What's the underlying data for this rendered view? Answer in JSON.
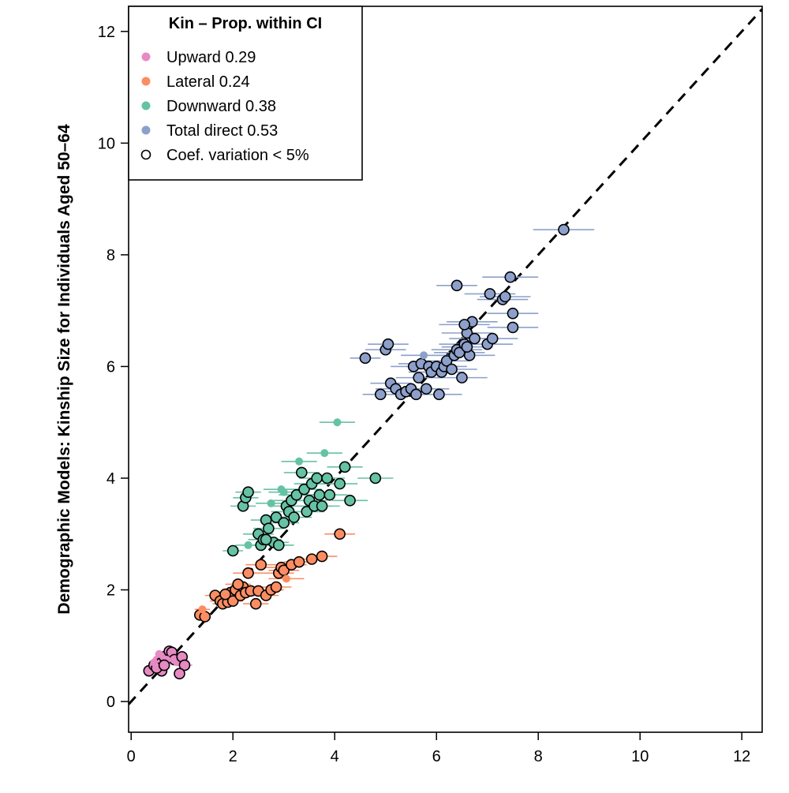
{
  "chart_data": {
    "type": "scatter",
    "title": "",
    "xlabel": "",
    "ylabel": "Demographic Models: Kinship Size for Individuals Aged 50–64",
    "xlim": [
      -0.05,
      12.4
    ],
    "ylim": [
      -0.55,
      12.45
    ],
    "x_ticks": [
      0,
      2,
      4,
      6,
      8,
      10,
      12
    ],
    "y_ticks": [
      0,
      2,
      4,
      6,
      8,
      10,
      12
    ],
    "x_tick_labels": [
      "0",
      "2",
      "4",
      "6",
      "8",
      "10",
      "12"
    ],
    "y_tick_labels": [
      "0",
      "2",
      "4",
      "6",
      "8",
      "10",
      "12"
    ],
    "reference_line": "y = x (dashed)",
    "legend": {
      "title": "Kin – Prop. within CI",
      "position": "top-left",
      "entries": [
        {
          "label": "Upward 0.29",
          "color": "#E78AC3",
          "marker": "filled"
        },
        {
          "label": "Lateral 0.24",
          "color": "#FC8D62",
          "marker": "filled"
        },
        {
          "label": "Downward 0.38",
          "color": "#66C2A5",
          "marker": "filled"
        },
        {
          "label": "Total direct 0.53",
          "color": "#8DA0CB",
          "marker": "filled"
        },
        {
          "label": "Coef. variation < 5%",
          "color": "#000000",
          "marker": "open"
        }
      ]
    },
    "series": [
      {
        "name": "Upward 0.29",
        "color": "#E78AC3",
        "points": [
          {
            "x": 0.35,
            "y": 0.55,
            "xerr": 0.08,
            "o": 1
          },
          {
            "x": 0.45,
            "y": 0.65,
            "xerr": 0.08,
            "o": 1
          },
          {
            "x": 0.5,
            "y": 0.75,
            "xerr": 0.08,
            "o": 0
          },
          {
            "x": 0.55,
            "y": 0.6,
            "xerr": 0.08,
            "o": 1
          },
          {
            "x": 0.6,
            "y": 0.7,
            "xerr": 0.1,
            "o": 1
          },
          {
            "x": 0.65,
            "y": 0.8,
            "xerr": 0.08,
            "o": 1
          },
          {
            "x": 0.7,
            "y": 0.85,
            "xerr": 0.1,
            "o": 0
          },
          {
            "x": 0.75,
            "y": 0.9,
            "xerr": 0.1,
            "o": 1
          },
          {
            "x": 0.8,
            "y": 0.88,
            "xerr": 0.1,
            "o": 1
          },
          {
            "x": 0.85,
            "y": 0.75,
            "xerr": 0.1,
            "o": 1
          },
          {
            "x": 0.9,
            "y": 0.7,
            "xerr": 0.1,
            "o": 0
          },
          {
            "x": 1.0,
            "y": 0.8,
            "xerr": 0.1,
            "o": 1
          },
          {
            "x": 1.05,
            "y": 0.65,
            "xerr": 0.15,
            "o": 1
          },
          {
            "x": 0.95,
            "y": 0.5,
            "xerr": 0.1,
            "o": 1
          },
          {
            "x": 0.6,
            "y": 0.55,
            "xerr": 0.08,
            "o": 1
          },
          {
            "x": 0.7,
            "y": 0.75,
            "xerr": 0.1,
            "o": 0
          },
          {
            "x": 0.5,
            "y": 0.6,
            "xerr": 0.08,
            "o": 1
          },
          {
            "x": 0.55,
            "y": 0.85,
            "xerr": 0.08,
            "o": 0
          },
          {
            "x": 0.65,
            "y": 0.65,
            "xerr": 0.08,
            "o": 1
          },
          {
            "x": 0.45,
            "y": 0.7,
            "xerr": 0.08,
            "o": 0
          }
        ]
      },
      {
        "name": "Lateral 0.24",
        "color": "#FC8D62",
        "points": [
          {
            "x": 1.35,
            "y": 1.55,
            "xerr": 0.1,
            "o": 1
          },
          {
            "x": 1.45,
            "y": 1.52,
            "xerr": 0.1,
            "o": 1
          },
          {
            "x": 1.4,
            "y": 1.65,
            "xerr": 0.15,
            "o": 0
          },
          {
            "x": 1.65,
            "y": 1.9,
            "xerr": 0.2,
            "o": 1
          },
          {
            "x": 1.75,
            "y": 1.8,
            "xerr": 0.2,
            "o": 1
          },
          {
            "x": 1.8,
            "y": 1.75,
            "xerr": 0.2,
            "o": 1
          },
          {
            "x": 1.9,
            "y": 1.78,
            "xerr": 0.2,
            "o": 1
          },
          {
            "x": 1.95,
            "y": 1.95,
            "xerr": 0.2,
            "o": 1
          },
          {
            "x": 2.0,
            "y": 1.8,
            "xerr": 0.2,
            "o": 1
          },
          {
            "x": 2.05,
            "y": 2.0,
            "xerr": 0.25,
            "o": 1
          },
          {
            "x": 2.15,
            "y": 1.9,
            "xerr": 0.2,
            "o": 1
          },
          {
            "x": 2.2,
            "y": 2.05,
            "xerr": 0.25,
            "o": 1
          },
          {
            "x": 2.25,
            "y": 1.95,
            "xerr": 0.25,
            "o": 1
          },
          {
            "x": 2.3,
            "y": 2.3,
            "xerr": 0.3,
            "o": 1
          },
          {
            "x": 2.35,
            "y": 1.98,
            "xerr": 0.25,
            "o": 1
          },
          {
            "x": 2.45,
            "y": 1.75,
            "xerr": 0.25,
            "o": 1
          },
          {
            "x": 2.5,
            "y": 1.98,
            "xerr": 0.25,
            "o": 1
          },
          {
            "x": 2.55,
            "y": 2.45,
            "xerr": 0.3,
            "o": 1
          },
          {
            "x": 2.65,
            "y": 1.9,
            "xerr": 0.25,
            "o": 1
          },
          {
            "x": 2.75,
            "y": 2.0,
            "xerr": 0.25,
            "o": 1
          },
          {
            "x": 2.85,
            "y": 2.05,
            "xerr": 0.3,
            "o": 1
          },
          {
            "x": 2.9,
            "y": 2.3,
            "xerr": 0.3,
            "o": 1
          },
          {
            "x": 2.95,
            "y": 2.4,
            "xerr": 0.3,
            "o": 1
          },
          {
            "x": 3.0,
            "y": 2.35,
            "xerr": 0.3,
            "o": 1
          },
          {
            "x": 3.05,
            "y": 2.2,
            "xerr": 0.35,
            "o": 0
          },
          {
            "x": 3.15,
            "y": 2.45,
            "xerr": 0.3,
            "o": 1
          },
          {
            "x": 3.3,
            "y": 2.5,
            "xerr": 0.3,
            "o": 1
          },
          {
            "x": 3.55,
            "y": 2.55,
            "xerr": 0.3,
            "o": 1
          },
          {
            "x": 3.75,
            "y": 2.6,
            "xerr": 0.3,
            "o": 1
          },
          {
            "x": 4.1,
            "y": 3.0,
            "xerr": 0.3,
            "o": 1
          },
          {
            "x": 2.1,
            "y": 2.1,
            "xerr": 0.25,
            "o": 1
          },
          {
            "x": 1.85,
            "y": 1.92,
            "xerr": 0.2,
            "o": 1
          }
        ]
      },
      {
        "name": "Downward 0.38",
        "color": "#66C2A5",
        "points": [
          {
            "x": 2.0,
            "y": 2.7,
            "xerr": 0.2,
            "o": 1
          },
          {
            "x": 2.3,
            "y": 2.8,
            "xerr": 0.25,
            "o": 0
          },
          {
            "x": 2.2,
            "y": 3.5,
            "xerr": 0.25,
            "o": 1
          },
          {
            "x": 2.25,
            "y": 3.65,
            "xerr": 0.25,
            "o": 1
          },
          {
            "x": 2.3,
            "y": 3.75,
            "xerr": 0.25,
            "o": 1
          },
          {
            "x": 2.5,
            "y": 3.0,
            "xerr": 0.3,
            "o": 1
          },
          {
            "x": 2.55,
            "y": 2.8,
            "xerr": 0.3,
            "o": 1
          },
          {
            "x": 2.6,
            "y": 2.9,
            "xerr": 0.3,
            "o": 1
          },
          {
            "x": 2.65,
            "y": 3.25,
            "xerr": 0.3,
            "o": 1
          },
          {
            "x": 2.7,
            "y": 3.1,
            "xerr": 0.3,
            "o": 1
          },
          {
            "x": 2.75,
            "y": 3.55,
            "xerr": 0.3,
            "o": 0
          },
          {
            "x": 2.8,
            "y": 2.85,
            "xerr": 0.3,
            "o": 1
          },
          {
            "x": 2.85,
            "y": 3.3,
            "xerr": 0.3,
            "o": 1
          },
          {
            "x": 2.9,
            "y": 2.8,
            "xerr": 0.3,
            "o": 1
          },
          {
            "x": 2.95,
            "y": 3.8,
            "xerr": 0.35,
            "o": 0
          },
          {
            "x": 3.0,
            "y": 3.2,
            "xerr": 0.3,
            "o": 1
          },
          {
            "x": 3.05,
            "y": 3.5,
            "xerr": 0.35,
            "o": 1
          },
          {
            "x": 3.1,
            "y": 3.4,
            "xerr": 0.35,
            "o": 1
          },
          {
            "x": 3.15,
            "y": 3.6,
            "xerr": 0.35,
            "o": 1
          },
          {
            "x": 3.2,
            "y": 3.3,
            "xerr": 0.35,
            "o": 1
          },
          {
            "x": 3.25,
            "y": 3.7,
            "xerr": 0.35,
            "o": 1
          },
          {
            "x": 3.3,
            "y": 4.3,
            "xerr": 0.35,
            "o": 0
          },
          {
            "x": 3.35,
            "y": 4.1,
            "xerr": 0.35,
            "o": 1
          },
          {
            "x": 3.4,
            "y": 3.8,
            "xerr": 0.35,
            "o": 1
          },
          {
            "x": 3.45,
            "y": 3.4,
            "xerr": 0.35,
            "o": 1
          },
          {
            "x": 3.5,
            "y": 3.6,
            "xerr": 0.35,
            "o": 1
          },
          {
            "x": 3.55,
            "y": 3.9,
            "xerr": 0.35,
            "o": 1
          },
          {
            "x": 3.6,
            "y": 3.5,
            "xerr": 0.35,
            "o": 1
          },
          {
            "x": 3.65,
            "y": 4.0,
            "xerr": 0.35,
            "o": 1
          },
          {
            "x": 3.7,
            "y": 3.7,
            "xerr": 0.35,
            "o": 1
          },
          {
            "x": 3.75,
            "y": 3.5,
            "xerr": 0.35,
            "o": 1
          },
          {
            "x": 3.8,
            "y": 4.45,
            "xerr": 0.35,
            "o": 0
          },
          {
            "x": 3.85,
            "y": 4.0,
            "xerr": 0.35,
            "o": 1
          },
          {
            "x": 3.9,
            "y": 3.7,
            "xerr": 0.35,
            "o": 1
          },
          {
            "x": 4.05,
            "y": 5.0,
            "xerr": 0.35,
            "o": 0
          },
          {
            "x": 4.1,
            "y": 3.9,
            "xerr": 0.35,
            "o": 1
          },
          {
            "x": 4.2,
            "y": 4.2,
            "xerr": 0.35,
            "o": 1
          },
          {
            "x": 4.3,
            "y": 3.6,
            "xerr": 0.35,
            "o": 1
          },
          {
            "x": 4.8,
            "y": 4.0,
            "xerr": 0.35,
            "o": 1
          },
          {
            "x": 3.0,
            "y": 3.75,
            "xerr": 0.3,
            "o": 0
          },
          {
            "x": 2.65,
            "y": 2.9,
            "xerr": 0.3,
            "o": 1
          }
        ]
      },
      {
        "name": "Total direct 0.53",
        "color": "#8DA0CB",
        "points": [
          {
            "x": 4.6,
            "y": 6.15,
            "xerr": 0.3,
            "o": 1
          },
          {
            "x": 4.9,
            "y": 5.5,
            "xerr": 0.35,
            "o": 1
          },
          {
            "x": 5.0,
            "y": 6.3,
            "xerr": 0.4,
            "o": 1
          },
          {
            "x": 5.05,
            "y": 6.4,
            "xerr": 0.4,
            "o": 1
          },
          {
            "x": 5.1,
            "y": 5.7,
            "xerr": 0.4,
            "o": 1
          },
          {
            "x": 5.2,
            "y": 5.6,
            "xerr": 0.4,
            "o": 1
          },
          {
            "x": 5.3,
            "y": 5.5,
            "xerr": 0.4,
            "o": 1
          },
          {
            "x": 5.4,
            "y": 5.55,
            "xerr": 0.4,
            "o": 1
          },
          {
            "x": 5.5,
            "y": 5.6,
            "xerr": 0.4,
            "o": 1
          },
          {
            "x": 5.55,
            "y": 6.0,
            "xerr": 0.45,
            "o": 1
          },
          {
            "x": 5.6,
            "y": 5.5,
            "xerr": 0.45,
            "o": 1
          },
          {
            "x": 5.65,
            "y": 5.8,
            "xerr": 0.45,
            "o": 1
          },
          {
            "x": 5.7,
            "y": 6.05,
            "xerr": 0.45,
            "o": 1
          },
          {
            "x": 5.75,
            "y": 6.2,
            "xerr": 0.45,
            "o": 0
          },
          {
            "x": 5.8,
            "y": 5.6,
            "xerr": 0.45,
            "o": 1
          },
          {
            "x": 5.85,
            "y": 6.0,
            "xerr": 0.45,
            "o": 1
          },
          {
            "x": 5.9,
            "y": 5.9,
            "xerr": 0.45,
            "o": 1
          },
          {
            "x": 6.0,
            "y": 6.0,
            "xerr": 0.45,
            "o": 1
          },
          {
            "x": 6.05,
            "y": 5.5,
            "xerr": 0.45,
            "o": 1
          },
          {
            "x": 6.1,
            "y": 5.9,
            "xerr": 0.45,
            "o": 1
          },
          {
            "x": 6.15,
            "y": 6.0,
            "xerr": 0.45,
            "o": 1
          },
          {
            "x": 6.2,
            "y": 6.1,
            "xerr": 0.45,
            "o": 1
          },
          {
            "x": 6.3,
            "y": 5.95,
            "xerr": 0.5,
            "o": 1
          },
          {
            "x": 6.35,
            "y": 6.2,
            "xerr": 0.5,
            "o": 1
          },
          {
            "x": 6.4,
            "y": 6.3,
            "xerr": 0.5,
            "o": 1
          },
          {
            "x": 6.45,
            "y": 6.25,
            "xerr": 0.5,
            "o": 1
          },
          {
            "x": 6.5,
            "y": 5.8,
            "xerr": 0.5,
            "o": 1
          },
          {
            "x": 6.55,
            "y": 6.4,
            "xerr": 0.5,
            "o": 1
          },
          {
            "x": 6.6,
            "y": 6.6,
            "xerr": 0.5,
            "o": 1
          },
          {
            "x": 6.65,
            "y": 6.2,
            "xerr": 0.5,
            "o": 1
          },
          {
            "x": 6.7,
            "y": 6.8,
            "xerr": 0.5,
            "o": 1
          },
          {
            "x": 6.75,
            "y": 6.5,
            "xerr": 0.5,
            "o": 1
          },
          {
            "x": 6.4,
            "y": 7.45,
            "xerr": 0.4,
            "o": 1
          },
          {
            "x": 7.0,
            "y": 6.4,
            "xerr": 0.5,
            "o": 1
          },
          {
            "x": 7.05,
            "y": 7.3,
            "xerr": 0.5,
            "o": 1
          },
          {
            "x": 7.1,
            "y": 6.5,
            "xerr": 0.5,
            "o": 1
          },
          {
            "x": 7.3,
            "y": 7.2,
            "xerr": 0.5,
            "o": 1
          },
          {
            "x": 7.35,
            "y": 7.25,
            "xerr": 0.5,
            "o": 1
          },
          {
            "x": 7.45,
            "y": 7.6,
            "xerr": 0.55,
            "o": 1
          },
          {
            "x": 7.5,
            "y": 6.95,
            "xerr": 0.5,
            "o": 1
          },
          {
            "x": 7.5,
            "y": 6.7,
            "xerr": 0.5,
            "o": 1
          },
          {
            "x": 8.5,
            "y": 8.45,
            "xerr": 0.6,
            "o": 1
          },
          {
            "x": 6.55,
            "y": 6.75,
            "xerr": 0.5,
            "o": 1
          },
          {
            "x": 6.6,
            "y": 6.35,
            "xerr": 0.5,
            "o": 1
          }
        ]
      }
    ]
  }
}
